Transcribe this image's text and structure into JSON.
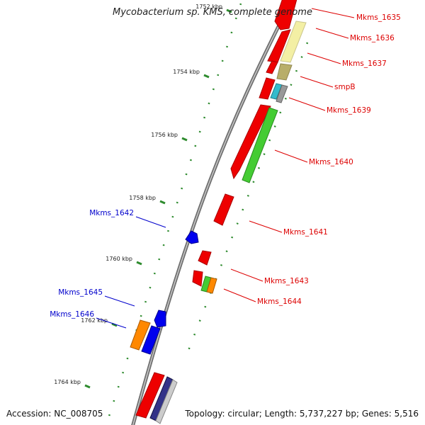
{
  "title": "Mycobacterium sp. KMS, complete genome",
  "accession": "Accession: NC_008705",
  "topology": "Topology: circular; Length: 5,737,227 bp; Genes: 5,516",
  "colors": {
    "backbone": "#8a8a8a",
    "tick": "#2e8b2e",
    "forward_label": "#dd0000",
    "reverse_label": "#0000cc",
    "cds": "#ee0000",
    "rrna": "#f3efa4",
    "tmrna": "#b8ae6a",
    "trna": "#33bbcc",
    "misc": "#999999",
    "outer_gene": "#44cc33",
    "orange": "#ff8800",
    "blue_gene": "#0000ee",
    "navy": "#333388"
  },
  "scale_labels": [
    "1752 kbp",
    "1754 kbp",
    "1756 kbp",
    "1758 kbp",
    "1760 kbp",
    "1762 kbp",
    "1764 kbp"
  ],
  "gene_labels": [
    {
      "text": "Mkms_1635",
      "strand": "forward"
    },
    {
      "text": "Mkms_1636",
      "strand": "forward"
    },
    {
      "text": "Mkms_1637",
      "strand": "forward"
    },
    {
      "text": "smpB",
      "strand": "forward"
    },
    {
      "text": "Mkms_1639",
      "strand": "forward"
    },
    {
      "text": "Mkms_1640",
      "strand": "forward"
    },
    {
      "text": "Mkms_1641",
      "strand": "forward"
    },
    {
      "text": "Mkms_1642",
      "strand": "reverse"
    },
    {
      "text": "Mkms_1643",
      "strand": "forward"
    },
    {
      "text": "Mkms_1644",
      "strand": "forward"
    },
    {
      "text": "Mkms_1645",
      "strand": "reverse"
    },
    {
      "text": "Mkms_1646",
      "strand": "reverse"
    }
  ]
}
